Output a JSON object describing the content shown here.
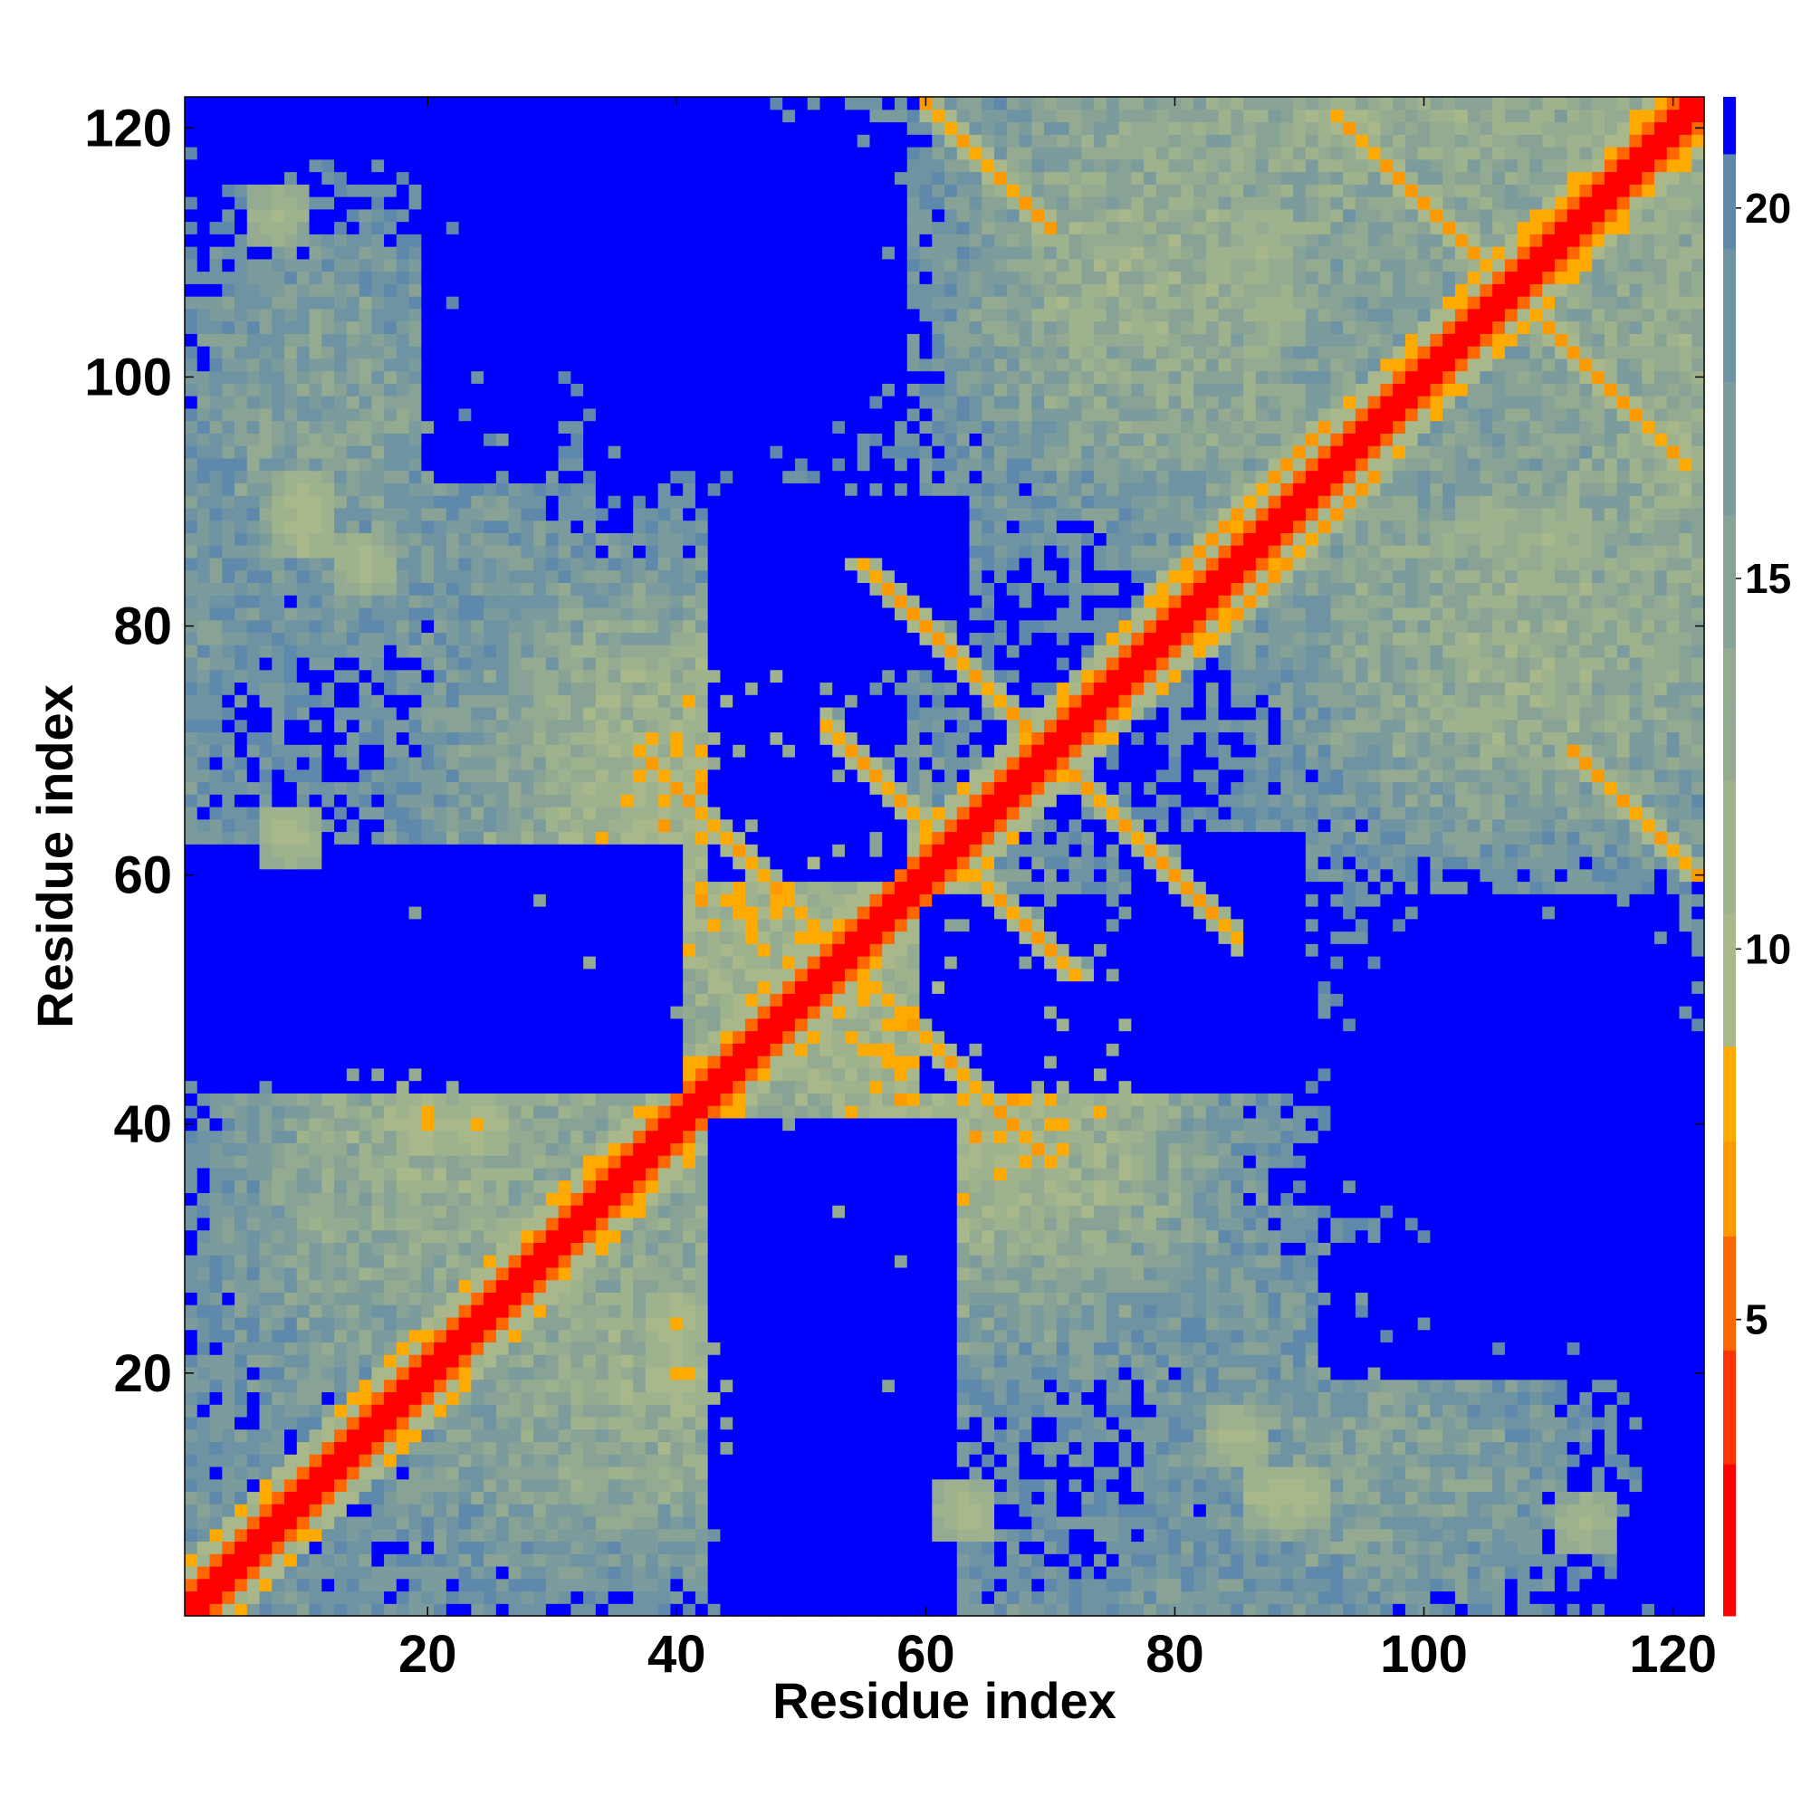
{
  "chart_data": {
    "type": "heatmap",
    "title": "",
    "xlabel": "Residue index",
    "ylabel": "Residue index",
    "n_residues": 122,
    "xlim": [
      1,
      122
    ],
    "ylim": [
      1,
      122
    ],
    "x_ticks": [
      20,
      40,
      60,
      80,
      100,
      120
    ],
    "y_ticks": [
      20,
      40,
      60,
      80,
      100,
      120
    ],
    "x_tick_labels": [
      "20",
      "40",
      "60",
      "80",
      "100",
      "120"
    ],
    "y_tick_labels": [
      "20",
      "40",
      "60",
      "80",
      "100",
      "120"
    ],
    "colorbar": {
      "ticks": [
        5,
        10,
        15,
        20
      ],
      "tick_labels": [
        "5",
        "10",
        "15",
        "20"
      ],
      "range": [
        1,
        21.5
      ],
      "cutoff_color": "#0000ff",
      "colors": [
        "#ff0000",
        "#ff3300",
        "#ff6600",
        "#ff9900",
        "#ffaa00",
        "#a8b88a",
        "#9fb28e",
        "#94ab92",
        "#88a396",
        "#7b9b9c",
        "#6e93a3",
        "#5f89aa",
        "#0000ff"
      ]
    },
    "grid": false,
    "legend": "colorbar-right",
    "diagonal_band": {
      "value_at_0": 1.0,
      "value_at_1": 2.5,
      "value_at_2": 5.0
    },
    "contact_segments": [
      {
        "type": "antiparallel",
        "i_range": [
          37,
          57
        ],
        "j_sum": 107,
        "description": "hairpin contacts near 47-57 / 57-70"
      },
      {
        "type": "antiparallel",
        "i_range": [
          52,
          71
        ],
        "j_sum": 124,
        "description": "contacts 52-71 with 53-72"
      },
      {
        "type": "antiparallel",
        "i_range": [
          60,
          70
        ],
        "j_sum": 182,
        "description": "contacts 60-70 with 112-122"
      },
      {
        "type": "antiparallel",
        "i_range": [
          93,
          106
        ],
        "j_sum": 214,
        "description": "contacts 93-106 with 108-121"
      },
      {
        "type": "antiparallel",
        "i_range": [
          70,
          85
        ],
        "j_sum": 140,
        "description": "contacts near 70-85"
      },
      {
        "type": "parallel",
        "i_range": [
          78,
          92
        ],
        "offset": 4,
        "description": "helix-like band near 78-95"
      },
      {
        "type": "antiparallel",
        "i_range": [
          100,
          112
        ],
        "j_sum": 214,
        "description": "contacts 100-112"
      }
    ],
    "contact_clusters": [
      {
        "i": 24,
        "j": 40,
        "value": 7
      },
      {
        "i": 20,
        "j": 40,
        "value": 7
      },
      {
        "i": 30,
        "j": 28,
        "value": 7
      },
      {
        "i": 10,
        "j": 90,
        "value": 8
      },
      {
        "i": 15,
        "j": 85,
        "value": 8
      },
      {
        "i": 9,
        "j": 63,
        "value": 8
      },
      {
        "i": 88,
        "j": 10,
        "value": 8
      },
      {
        "i": 113,
        "j": 8,
        "value": 9
      },
      {
        "i": 110,
        "j": 87,
        "value": 9
      },
      {
        "i": 88,
        "j": 105,
        "value": 9
      }
    ],
    "blue_regions": [
      {
        "x": [
          43,
          63
        ],
        "y": [
          77,
          90
        ],
        "description": "large cutoff region"
      },
      {
        "x": [
          1,
          40
        ],
        "y": [
          46,
          60
        ]
      },
      {
        "x": [
          60,
          90
        ],
        "y": [
          43,
          58
        ]
      },
      {
        "x": [
          43,
          62
        ],
        "y": [
          1,
          40
        ]
      },
      {
        "x": [
          20,
          30
        ],
        "y": [
          92,
          114
        ]
      },
      {
        "x": [
          99,
          120
        ],
        "y": [
          44,
          58
        ]
      }
    ]
  }
}
